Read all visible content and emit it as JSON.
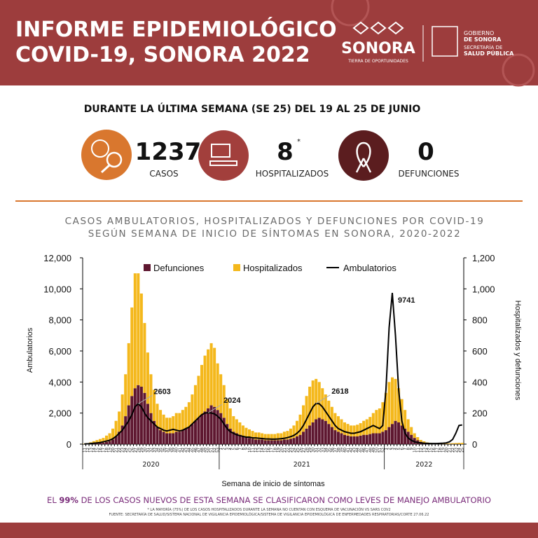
{
  "header": {
    "title_line1": "INFORME EPIDEMIOLÓGICO",
    "title_line2": "COVID-19, SONORA 2022",
    "logo_sonora": "SONORA",
    "logo_tagline": "TIERRA DE OPORTUNIDADES",
    "gov_line1": "GOBIERNO",
    "gov_line2": "DE SONORA",
    "gov_line3": "SECRETARÍA DE",
    "gov_line4": "SALUD PÚBLICA"
  },
  "summary": {
    "heading": "DURANTE LA ÚLTIMA SEMANA (SE 25) DEL 19 AL 25 DE JUNIO",
    "stats": [
      {
        "value": 1237,
        "label": "CASOS"
      },
      {
        "value": 8,
        "note": "*",
        "label": "HOSPITALIZADOS"
      },
      {
        "value": 0,
        "label": "DEFUNCIONES"
      }
    ]
  },
  "chart_data": {
    "type": "bar",
    "stacked": true,
    "title": "CASOS AMBULATORIOS, HOSPITALIZADOS Y DEFUNCIONES POR COVID-19",
    "title_line2": "SEGÚN SEMANA DE INICIO DE SÍNTOMAS EN SONORA, 2020-2022",
    "x_label": "Semana de inicio de síntomas",
    "y_label": "Ambulatorios",
    "y2_label": "Hospitalizados y defunciones",
    "x_groups": [
      "2020",
      "2021",
      "2022"
    ],
    "categories": [
      11,
      12,
      13,
      14,
      15,
      16,
      17,
      18,
      19,
      20,
      21,
      22,
      23,
      24,
      25,
      26,
      27,
      28,
      29,
      30,
      31,
      32,
      33,
      34,
      35,
      36,
      37,
      38,
      39,
      40,
      41,
      42,
      43,
      44,
      45,
      46,
      47,
      48,
      49,
      50,
      51,
      52,
      53,
      1,
      2,
      3,
      4,
      5,
      6,
      7,
      8,
      9,
      10,
      11,
      12,
      13,
      14,
      15,
      16,
      17,
      18,
      19,
      20,
      21,
      22,
      23,
      24,
      25,
      26,
      27,
      28,
      29,
      30,
      31,
      32,
      33,
      34,
      35,
      36,
      37,
      38,
      39,
      40,
      41,
      42,
      43,
      44,
      45,
      46,
      47,
      48,
      49,
      50,
      51,
      52,
      1,
      2,
      3,
      4,
      5,
      6,
      7,
      8,
      9,
      10,
      11,
      12,
      13,
      14,
      15,
      16,
      17,
      18,
      19,
      20,
      21,
      22,
      23,
      24,
      25
    ],
    "ylim": [
      0,
      12000
    ],
    "yticks": [
      0,
      {
        "value": 2000,
        "label": "2,000"
      },
      {
        "value": 4000,
        "label": "4,000"
      },
      {
        "value": 6000,
        "label": "6,000"
      },
      {
        "value": 8000,
        "label": "8,000"
      },
      {
        "value": 10000,
        "label": "10,000"
      },
      {
        "value": 12000,
        "label": "12,000"
      }
    ],
    "y2lim": [
      0,
      1200
    ],
    "y2ticks": [
      0,
      200,
      400,
      600,
      800,
      {
        "value": 1000,
        "label": "1,000"
      },
      {
        "value": 1200,
        "label": "1,200"
      }
    ],
    "grid": false,
    "legend": "top",
    "series": [
      {
        "name": "Defunciones",
        "type": "bar",
        "axis": "y2",
        "color": "#5e1730",
        "values": [
          0,
          1,
          2,
          4,
          6,
          8,
          10,
          15,
          20,
          30,
          50,
          80,
          120,
          180,
          250,
          310,
          360,
          380,
          370,
          330,
          260,
          200,
          150,
          110,
          90,
          80,
          70,
          70,
          70,
          80,
          80,
          90,
          100,
          110,
          130,
          150,
          170,
          190,
          210,
          230,
          250,
          240,
          220,
          200,
          170,
          130,
          100,
          80,
          70,
          60,
          50,
          45,
          40,
          35,
          30,
          30,
          30,
          25,
          25,
          25,
          25,
          25,
          25,
          30,
          30,
          35,
          40,
          50,
          60,
          80,
          100,
          120,
          140,
          160,
          170,
          160,
          150,
          130,
          110,
          90,
          80,
          70,
          60,
          55,
          50,
          50,
          50,
          55,
          60,
          60,
          65,
          70,
          70,
          70,
          80,
          90,
          110,
          130,
          150,
          140,
          120,
          100,
          80,
          60,
          40,
          25,
          15,
          10,
          6,
          4,
          3,
          2,
          2,
          1,
          1,
          1,
          1,
          1,
          1,
          0
        ]
      },
      {
        "name": "Hospitalizados",
        "type": "bar",
        "axis": "y2",
        "color": "#f4b81c",
        "values": [
          2,
          5,
          10,
          15,
          20,
          25,
          30,
          40,
          50,
          70,
          100,
          130,
          200,
          270,
          400,
          570,
          740,
          720,
          600,
          450,
          330,
          250,
          200,
          150,
          130,
          110,
          100,
          100,
          110,
          120,
          120,
          130,
          140,
          160,
          190,
          230,
          270,
          320,
          360,
          380,
          400,
          380,
          300,
          250,
          210,
          160,
          130,
          100,
          90,
          80,
          70,
          60,
          55,
          50,
          45,
          45,
          40,
          40,
          40,
          40,
          40,
          45,
          45,
          50,
          55,
          65,
          80,
          100,
          130,
          170,
          210,
          250,
          270,
          260,
          230,
          200,
          170,
          150,
          130,
          110,
          100,
          90,
          80,
          75,
          70,
          70,
          75,
          80,
          90,
          100,
          110,
          130,
          150,
          160,
          190,
          240,
          290,
          300,
          270,
          220,
          170,
          120,
          80,
          50,
          30,
          20,
          12,
          8,
          5,
          4,
          3,
          3,
          3,
          3,
          3,
          4,
          5,
          6,
          7,
          8
        ]
      },
      {
        "name": "Ambulatorios",
        "type": "line",
        "axis": "y",
        "color": "#000000",
        "values": [
          10,
          20,
          40,
          60,
          80,
          100,
          150,
          200,
          250,
          350,
          500,
          700,
          900,
          1200,
          1500,
          1900,
          2400,
          2603,
          2400,
          2000,
          1700,
          1500,
          1300,
          1100,
          1000,
          900,
          850,
          900,
          950,
          900,
          850,
          900,
          1000,
          1100,
          1300,
          1500,
          1700,
          1900,
          2000,
          2024,
          2000,
          1950,
          1800,
          1600,
          1300,
          1000,
          800,
          700,
          600,
          550,
          500,
          450,
          450,
          400,
          400,
          380,
          360,
          340,
          330,
          320,
          320,
          330,
          350,
          380,
          420,
          480,
          560,
          700,
          900,
          1200,
          1600,
          2000,
          2400,
          2618,
          2600,
          2400,
          2100,
          1800,
          1500,
          1200,
          1000,
          900,
          800,
          750,
          700,
          700,
          750,
          800,
          900,
          1000,
          1100,
          1200,
          1100,
          1000,
          1200,
          3500,
          7500,
          9741,
          7000,
          3500,
          1500,
          700,
          400,
          250,
          150,
          100,
          80,
          60,
          50,
          40,
          40,
          40,
          50,
          60,
          80,
          150,
          300,
          700,
          1200,
          1237
        ],
        "value_labels": [
          null,
          null,
          null,
          null,
          null,
          null,
          null,
          null,
          null,
          null,
          null,
          null,
          null,
          null,
          null,
          null,
          null,
          "2603",
          null,
          null,
          null,
          null,
          null,
          null,
          null,
          null,
          null,
          null,
          null,
          null,
          null,
          null,
          null,
          null,
          null,
          null,
          null,
          null,
          null,
          "2024",
          null,
          null,
          null,
          null,
          null,
          null,
          null,
          null,
          null,
          null,
          null,
          null,
          null,
          null,
          null,
          null,
          null,
          null,
          null,
          null,
          null,
          null,
          null,
          null,
          null,
          null,
          null,
          null,
          null,
          null,
          null,
          null,
          null,
          "2618",
          null,
          null,
          null,
          null,
          null,
          null,
          null,
          null,
          null,
          null,
          null,
          null,
          null,
          null,
          null,
          null,
          null,
          null,
          null,
          null,
          null,
          null,
          null,
          "9741",
          null,
          null,
          null,
          null,
          null,
          null,
          null,
          null,
          null,
          null,
          null,
          null,
          null,
          null,
          null,
          null,
          null,
          null,
          null,
          null,
          null,
          null
        ]
      }
    ]
  },
  "footer": {
    "highlight_pre": "EL ",
    "highlight_value": "99%",
    "highlight_post": " DE LOS CASOS NUEVOS DE ESTA SEMANA SE CLASIFICARON COMO LEVES DE MANEJO AMBULATORIO",
    "note": "* LA MAYORÍA (75%) DE LOS CASOS HOSPITALIZADOS DURANTE LA SEMANA NO CUENTAN CON ESQUEMA DE VACUNACIÓN VS SARS COV2",
    "source": "FUENTE: SECRETARÍA DE SALUD/SISTEMA NACIONAL DE VIGILANCIA EPIDEMIOLÓGICA/SISTEMA DE VIGILANCIA EPIDEMIOLÓGICA DE ENFERMEDADES RESPIRATORIAS/CORTE 27.06.22"
  }
}
